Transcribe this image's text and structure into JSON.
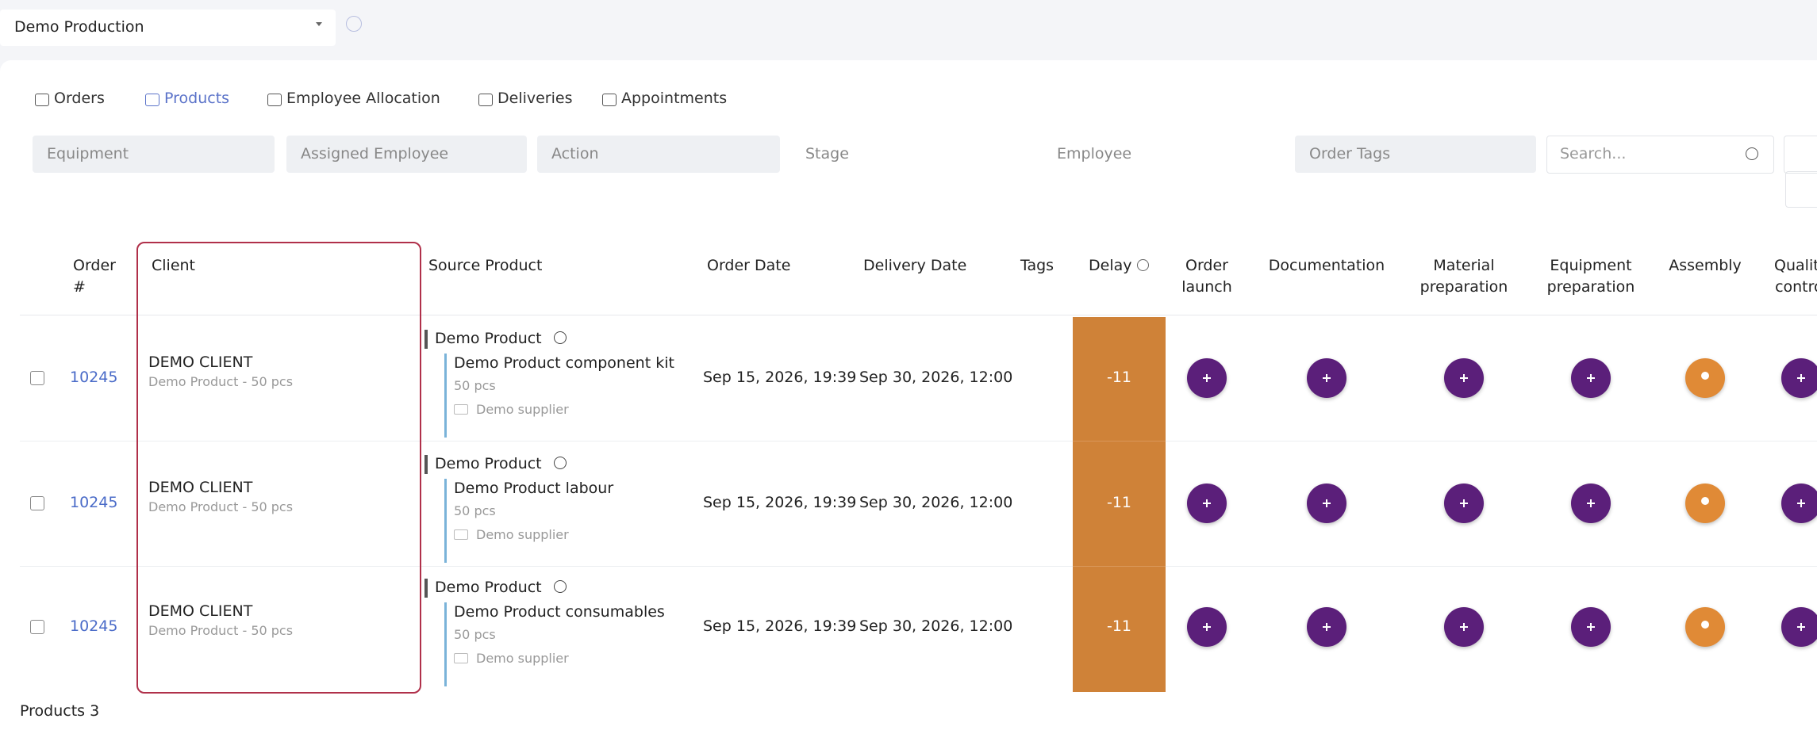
{
  "header": {
    "dropdown": "Demo Production"
  },
  "tabs": [
    "Orders",
    "Products",
    "Employee Allocation",
    "Deliveries",
    "Appointments"
  ],
  "filters": [
    "Equipment",
    "Assigned Employee",
    "Action",
    "Stage",
    "Employee",
    "Order Tags"
  ],
  "search": "Search...",
  "table": {
    "columns": [
      "Order #",
      "Client",
      "Source Product",
      "Order Date",
      "Delivery Date",
      "Tags",
      "Delay",
      "Order launch",
      "Documentation",
      "Material preparation",
      "Equipment preparation",
      "Assembly",
      "Quality control"
    ],
    "rows": [
      {
        "order": "10245",
        "client": "DEMO CLIENT",
        "client_detail": "Demo Product - 50 pcs",
        "source_product": "Demo Product",
        "component": "Demo Product component kit",
        "quantity": "50 pcs",
        "supplier": "Demo supplier",
        "order_date": "Sep 15, 2026, 19:39",
        "delivery_date": "Sep 30, 2026, 12:00",
        "delay": "-11"
      },
      {
        "order": "10245",
        "client": "DEMO CLIENT",
        "client_detail": "Demo Product - 50 pcs",
        "source_product": "Demo Product",
        "component": "Demo Product labour",
        "quantity": "50 pcs",
        "supplier": "Demo supplier",
        "order_date": "Sep 15, 2026, 19:39",
        "delivery_date": "Sep 30, 2026, 12:00",
        "delay": "-11"
      },
      {
        "order": "10245",
        "client": "DEMO CLIENT",
        "client_detail": "Demo Product - 50 pcs",
        "source_product": "Demo Product",
        "component": "Demo Product consumables",
        "quantity": "50 pcs",
        "supplier": "Demo supplier",
        "order_date": "Sep 15, 2026, 19:39",
        "delivery_date": "Sep 30, 2026, 12:00",
        "delay": "-11"
      }
    ]
  },
  "footer": "Products 3"
}
